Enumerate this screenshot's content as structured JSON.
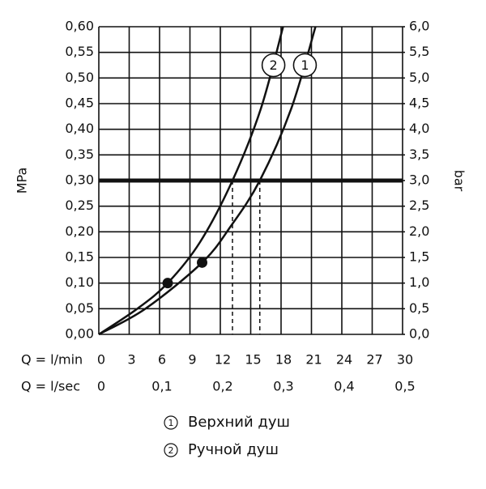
{
  "chart_data": {
    "type": "line",
    "y_label": "MPa",
    "y2_label": "bar",
    "x_label": "Q = l/min",
    "x2_label": "Q = l/sec",
    "xlim": [
      0,
      30
    ],
    "xticks": [
      0,
      3,
      6,
      9,
      12,
      15,
      18,
      21,
      24,
      27,
      30
    ],
    "x2lim": [
      0,
      0.5
    ],
    "x2ticks": [
      0,
      {
        "value": 0.1,
        "label": "0,1"
      },
      {
        "value": 0.2,
        "label": "0,2"
      },
      {
        "value": 0.3,
        "label": "0,3"
      },
      {
        "value": 0.4,
        "label": "0,4"
      },
      {
        "value": 0.5,
        "label": "0,5"
      }
    ],
    "ylim": [
      0,
      0.6
    ],
    "yticks": [
      {
        "value": 0,
        "label": "0,00"
      },
      {
        "value": 0.05,
        "label": "0,05"
      },
      {
        "value": 0.1,
        "label": "0,10"
      },
      {
        "value": 0.15,
        "label": "0,15"
      },
      {
        "value": 0.2,
        "label": "0,20"
      },
      {
        "value": 0.25,
        "label": "0,25"
      },
      {
        "value": 0.3,
        "label": "0,30"
      },
      {
        "value": 0.35,
        "label": "0,35"
      },
      {
        "value": 0.4,
        "label": "0,40"
      },
      {
        "value": 0.45,
        "label": "0,45"
      },
      {
        "value": 0.5,
        "label": "0,50"
      },
      {
        "value": 0.55,
        "label": "0,55"
      },
      {
        "value": 0.6,
        "label": "0,60"
      }
    ],
    "y2lim": [
      0,
      6
    ],
    "y2ticks": [
      {
        "value": 0,
        "label": "0,0"
      },
      {
        "value": 0.5,
        "label": "0,5"
      },
      {
        "value": 1,
        "label": "1,0"
      },
      {
        "value": 1.5,
        "label": "1,5"
      },
      {
        "value": 2,
        "label": "2,0"
      },
      {
        "value": 2.5,
        "label": "2,5"
      },
      {
        "value": 3,
        "label": "3,0"
      },
      {
        "value": 3.5,
        "label": "3,5"
      },
      {
        "value": 4,
        "label": "4,0"
      },
      {
        "value": 4.5,
        "label": "4,5"
      },
      {
        "value": 5,
        "label": "5,0"
      },
      {
        "value": 5.5,
        "label": "5,5"
      },
      {
        "value": 6,
        "label": "6,0"
      }
    ],
    "grid": true,
    "threshold": 0.3,
    "series": [
      {
        "name": "Верхний душ",
        "label": "1",
        "color": "#111111",
        "x": [
          0,
          4.6,
          10.2,
          13,
          15.9,
          19,
          21.4
        ],
        "values": [
          0,
          0.05,
          0.14,
          0.21,
          0.3,
          0.44,
          0.6
        ],
        "point": {
          "x": 10.2,
          "y": 0.14
        },
        "drop_x": 15.9
      },
      {
        "name": "Ручной душ",
        "label": "2",
        "color": "#111111",
        "x": [
          0,
          3.8,
          6.8,
          10,
          13.2,
          16,
          18.2
        ],
        "values": [
          0,
          0.05,
          0.1,
          0.18,
          0.3,
          0.44,
          0.6
        ],
        "point": {
          "x": 6.8,
          "y": 0.1
        },
        "drop_x": 13.2
      }
    ]
  }
}
